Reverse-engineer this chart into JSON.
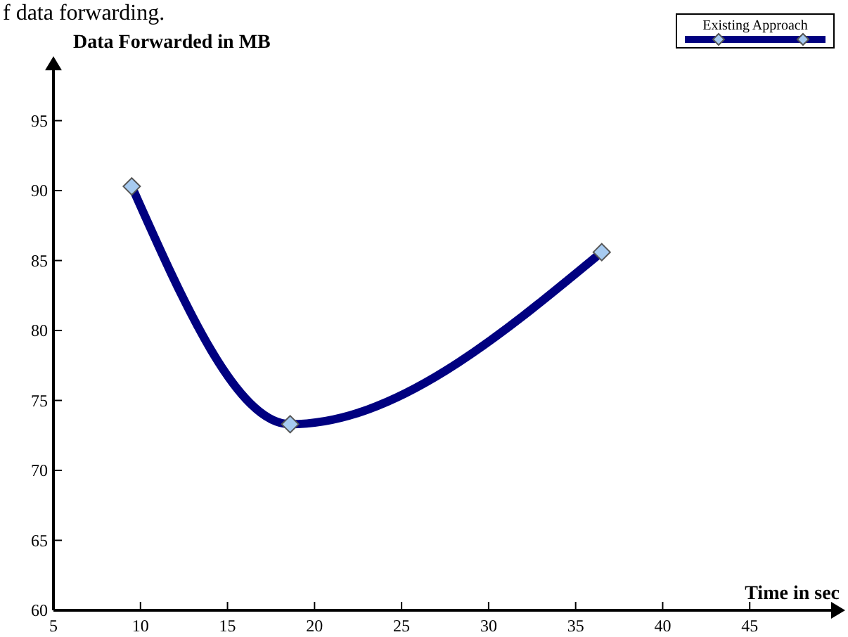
{
  "chart_data": {
    "type": "line",
    "xlabel": "Time in sec",
    "ylabel": "Data Forwarded in MB",
    "annotations": [
      "f data forwarding."
    ],
    "x": [
      9.5,
      18.6,
      36.5
    ],
    "series": [
      {
        "name": "Existing Approach",
        "color": "#000080",
        "values": [
          90.3,
          73.3,
          85.6
        ]
      }
    ],
    "xlim": [
      5,
      50
    ],
    "ylim": [
      60,
      99
    ],
    "xticks": [
      5,
      10,
      15,
      20,
      25,
      30,
      35,
      40,
      45
    ],
    "yticks": [
      60,
      65,
      70,
      75,
      80,
      85,
      90,
      95
    ],
    "grid": false,
    "legend": "top right",
    "marker": "diamond",
    "line_style": "solid"
  }
}
